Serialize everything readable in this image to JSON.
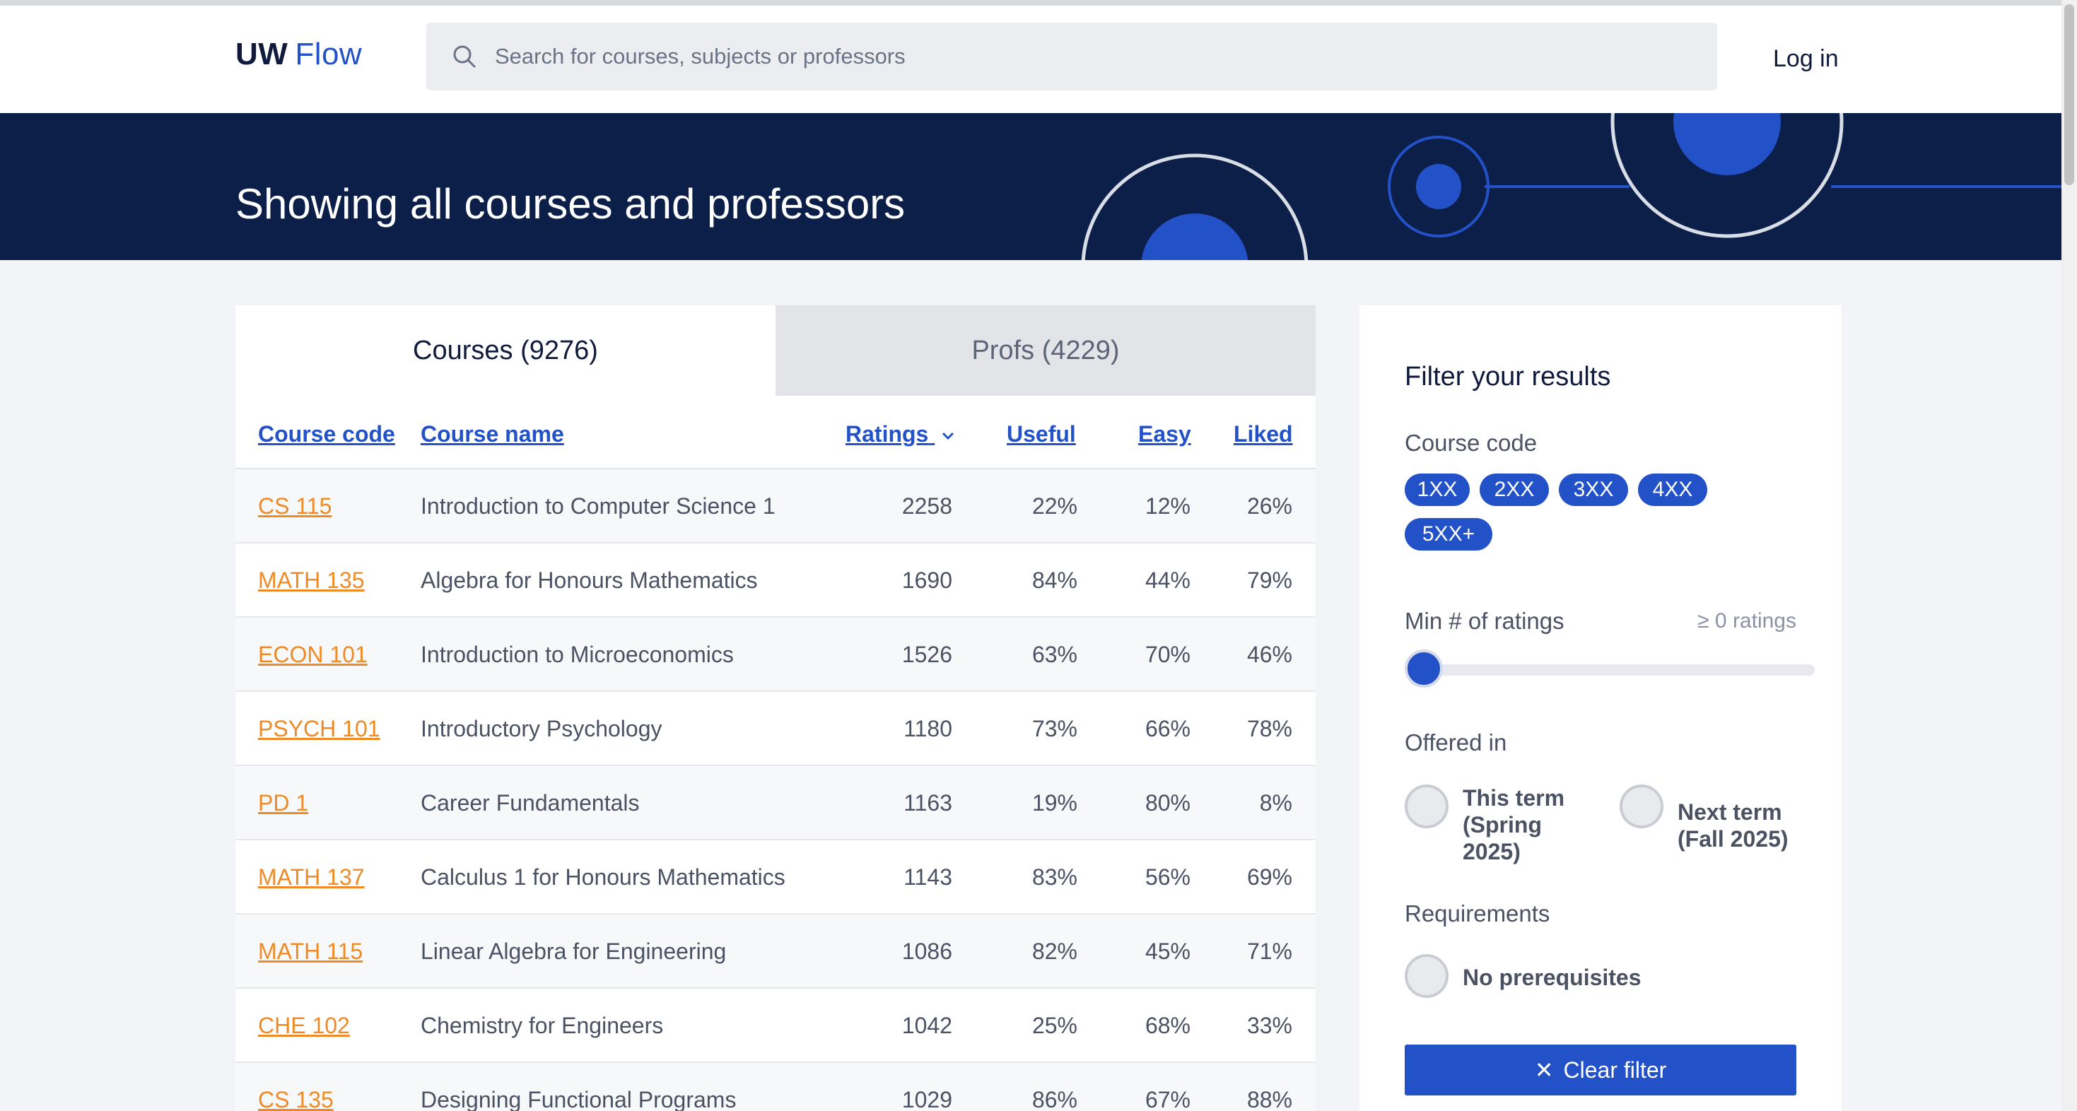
{
  "header": {
    "logo_part1": "UW",
    "logo_part2": "Flow",
    "search_placeholder": "Search for courses, subjects or professors",
    "login_label": "Log in"
  },
  "banner": {
    "title": "Showing all courses and professors"
  },
  "tabs": [
    {
      "label": "Courses (9276)",
      "active": true
    },
    {
      "label": "Profs (4229)",
      "active": false
    }
  ],
  "table": {
    "columns": {
      "code": "Course code",
      "name": "Course name",
      "ratings": "Ratings",
      "useful": "Useful",
      "easy": "Easy",
      "liked": "Liked"
    },
    "rows": [
      {
        "code": "CS 115",
        "name": "Introduction to Computer Science 1",
        "ratings": "2258",
        "useful": "22%",
        "easy": "12%",
        "liked": "26%"
      },
      {
        "code": "MATH 135",
        "name": "Algebra for Honours Mathematics",
        "ratings": "1690",
        "useful": "84%",
        "easy": "44%",
        "liked": "79%"
      },
      {
        "code": "ECON 101",
        "name": "Introduction to Microeconomics",
        "ratings": "1526",
        "useful": "63%",
        "easy": "70%",
        "liked": "46%"
      },
      {
        "code": "PSYCH 101",
        "name": "Introductory Psychology",
        "ratings": "1180",
        "useful": "73%",
        "easy": "66%",
        "liked": "78%"
      },
      {
        "code": "PD 1",
        "name": "Career Fundamentals",
        "ratings": "1163",
        "useful": "19%",
        "easy": "80%",
        "liked": "8%"
      },
      {
        "code": "MATH 137",
        "name": "Calculus 1 for Honours Mathematics",
        "ratings": "1143",
        "useful": "83%",
        "easy": "56%",
        "liked": "69%"
      },
      {
        "code": "MATH 115",
        "name": "Linear Algebra for Engineering",
        "ratings": "1086",
        "useful": "82%",
        "easy": "45%",
        "liked": "71%"
      },
      {
        "code": "CHE 102",
        "name": "Chemistry for Engineers",
        "ratings": "1042",
        "useful": "25%",
        "easy": "68%",
        "liked": "33%"
      },
      {
        "code": "CS 135",
        "name": "Designing Functional Programs",
        "ratings": "1029",
        "useful": "86%",
        "easy": "67%",
        "liked": "88%"
      }
    ]
  },
  "filter": {
    "title": "Filter your results",
    "course_code_label": "Course code",
    "chips": [
      "1XX",
      "2XX",
      "3XX",
      "4XX",
      "5XX+"
    ],
    "min_ratings_label": "Min # of ratings",
    "min_ratings_hint": "≥ 0 ratings",
    "min_ratings_value": 0,
    "offered_label": "Offered in",
    "this_term": "This term (Spring 2025)",
    "next_term": "Next term (Fall 2025)",
    "requirements_label": "Requirements",
    "no_prereq": "No prerequisites",
    "clear_label": "Clear filter"
  },
  "colors": {
    "accent": "#2351c7",
    "banner": "#0c1f49",
    "course_code": "#f08a24"
  }
}
